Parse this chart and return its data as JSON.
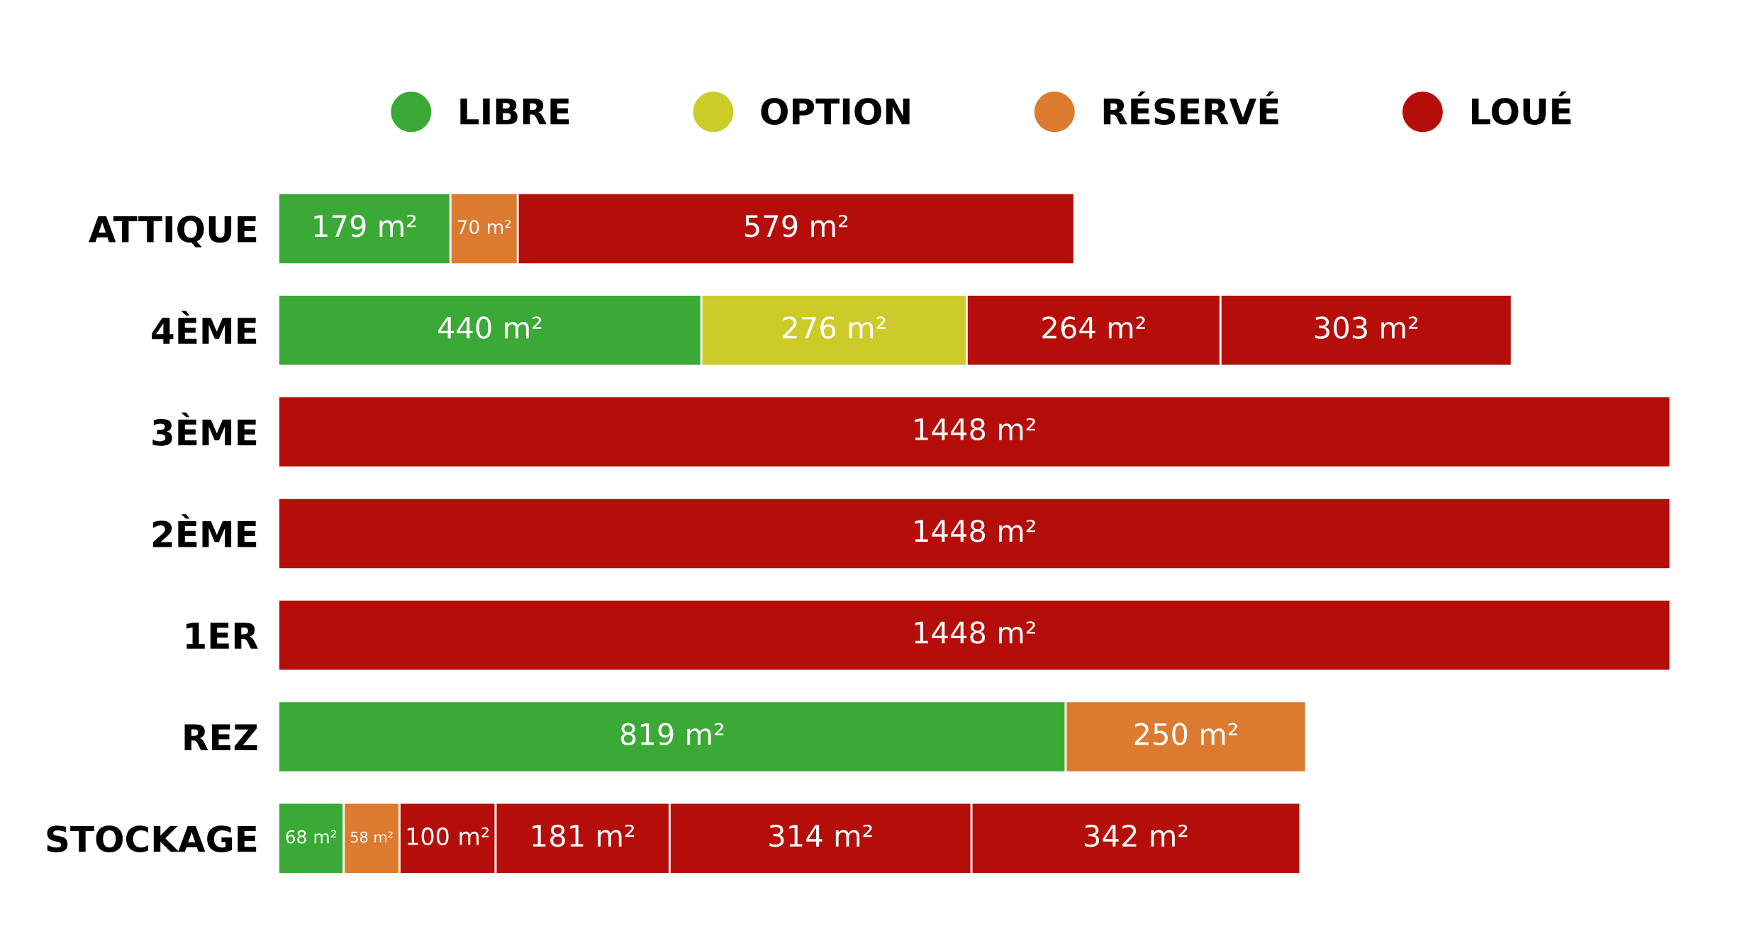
{
  "chart_data": {
    "type": "bar",
    "orientation": "horizontal",
    "stacked": true,
    "categories": [
      "ATTIQUE",
      "4ÈME",
      "3ÈME",
      "2ÈME",
      "1ER",
      "REZ",
      "STOCKAGE"
    ],
    "series": [
      {
        "name": "LIBRE",
        "color": "#3aa935",
        "values": [
          179,
          440,
          null,
          null,
          null,
          819,
          68
        ],
        "value_labels": [
          "179 m²",
          "440 m²",
          null,
          null,
          null,
          "819 m²",
          "68 m²"
        ]
      },
      {
        "name": "OPTION",
        "color": "#cccb2a",
        "values": [
          null,
          276,
          null,
          null,
          null,
          null,
          null
        ],
        "value_labels": [
          null,
          "276 m²",
          null,
          null,
          null,
          null,
          null
        ]
      },
      {
        "name": "RÉSERVÉ",
        "color": "#dc7a30",
        "values": [
          70,
          null,
          null,
          null,
          null,
          250,
          58
        ],
        "value_labels": [
          "70 m²",
          null,
          null,
          null,
          null,
          "250 m²",
          "58 m²"
        ]
      },
      {
        "name": "LOUÉ",
        "color": "#b50e0a",
        "values": [
          579,
          264,
          1448,
          1448,
          1448,
          null,
          100
        ],
        "value_labels": [
          "579 m²",
          "264 m²",
          "1448 m²",
          "1448 m²",
          "1448 m²",
          null,
          "100 m²"
        ]
      },
      {
        "color": "#b50e0a",
        "values": [
          null,
          303,
          null,
          null,
          null,
          null,
          181
        ],
        "value_labels": [
          null,
          "303 m²",
          null,
          null,
          null,
          null,
          "181 m²"
        ]
      },
      {
        "color": "#b50e0a",
        "values": [
          null,
          null,
          null,
          null,
          null,
          null,
          314
        ],
        "value_labels": [
          null,
          null,
          null,
          null,
          null,
          null,
          "314 m²"
        ]
      },
      {
        "color": "#b50e0a",
        "values": [
          null,
          null,
          null,
          null,
          null,
          null,
          342
        ],
        "value_labels": [
          null,
          null,
          null,
          null,
          null,
          null,
          "342 m²"
        ]
      }
    ],
    "tick_labels": "y",
    "grid": false,
    "legend": "top"
  }
}
